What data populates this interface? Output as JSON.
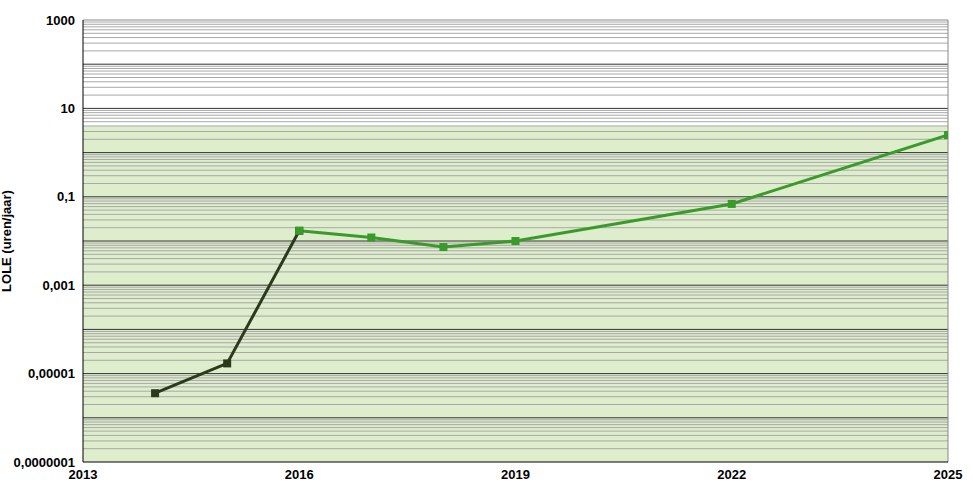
{
  "chart_data": {
    "type": "line",
    "y_label": "LOLE (uren/jaar)",
    "x": [
      2014,
      2015,
      2016,
      2017,
      2018,
      2019,
      2022,
      2025
    ],
    "series": [
      {
        "color": "#2b3a1c",
        "marker": "square",
        "values": [
          3.6e-06,
          1.7e-05,
          0.017,
          null,
          null,
          null,
          null,
          null
        ]
      },
      {
        "color": "#3a9a2a",
        "marker": "square",
        "values": [
          null,
          null,
          0.017,
          0.012,
          0.0073,
          0.01,
          0.069,
          2.5
        ]
      }
    ],
    "xlim": [
      2013,
      2025
    ],
    "xticks": [
      2013,
      2016,
      2019,
      2022,
      2025
    ],
    "ylim": [
      1e-07,
      1000
    ],
    "yticks": [
      {
        "value": 1e-07,
        "label": "0,0000001"
      },
      {
        "value": 1e-05,
        "label": "0,00001"
      },
      {
        "value": 0.001,
        "label": "0,001"
      },
      {
        "value": 0.1,
        "label": "0,1"
      },
      10,
      1000
    ],
    "log": "y",
    "grid": true,
    "band": {
      "from": 1e-07,
      "to": 4,
      "color": "#deedcc"
    }
  }
}
